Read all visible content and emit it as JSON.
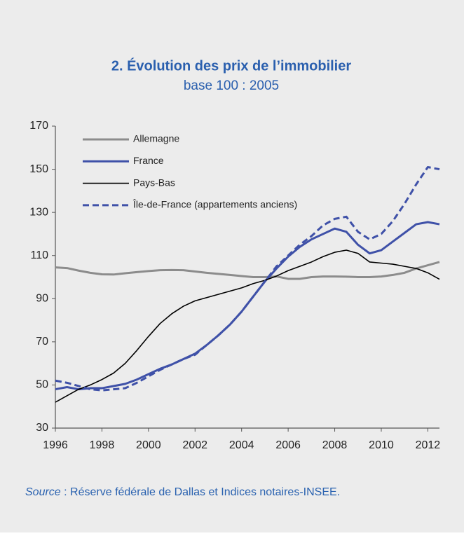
{
  "chart_data": {
    "type": "line",
    "title": "2. Évolution des prix de l’immobilier",
    "subtitle": "base 100 : 2005",
    "source_label": "Source",
    "source_text": " : Réserve fédérale de Dallas et Indices notaires-INSEE.",
    "x": [
      1996,
      1996.5,
      1997,
      1997.5,
      1998,
      1998.5,
      1999,
      1999.5,
      2000,
      2000.5,
      2001,
      2001.5,
      2002,
      2002.5,
      2003,
      2003.5,
      2004,
      2004.5,
      2005,
      2005.5,
      2006,
      2006.5,
      2007,
      2007.5,
      2008,
      2008.5,
      2009,
      2009.5,
      2010,
      2010.5,
      2011,
      2011.5,
      2012,
      2012.5
    ],
    "xlim": [
      1996,
      2012.5
    ],
    "xticks": [
      1996,
      1998,
      2000,
      2002,
      2004,
      2006,
      2008,
      2010,
      2012
    ],
    "ylim": [
      30,
      170
    ],
    "yticks": [
      30,
      50,
      70,
      90,
      110,
      130,
      150,
      170
    ],
    "series": [
      {
        "name": "Allemagne",
        "color": "#8c8c8c",
        "style": "solid",
        "values": [
          104.5,
          104.2,
          103,
          102,
          101.3,
          101.2,
          101.8,
          102.3,
          102.8,
          103.2,
          103.3,
          103.2,
          102.6,
          102,
          101.5,
          101,
          100.5,
          100,
          100,
          100.3,
          99.2,
          99.2,
          100,
          100.3,
          100.3,
          100.2,
          100,
          100,
          100.3,
          101,
          102,
          104,
          105.5,
          107
        ]
      },
      {
        "name": "France",
        "color": "#3f51a8",
        "style": "solid",
        "values": [
          48,
          49,
          48,
          48.5,
          48.5,
          49.5,
          50.5,
          52.5,
          55,
          57.5,
          59.5,
          62,
          64.5,
          68.5,
          73,
          78,
          84,
          91,
          98,
          104,
          109.5,
          114,
          117.5,
          120,
          122.5,
          121,
          115,
          111,
          112.5,
          116.5,
          120.5,
          124.5,
          125.5,
          124.5
        ]
      },
      {
        "name": "Pays-Bas",
        "color": "#000000",
        "style": "solid",
        "values": [
          42,
          45,
          48,
          50,
          52.5,
          55.5,
          60,
          66,
          72.5,
          78.5,
          83,
          86.5,
          89,
          90.5,
          92,
          93.5,
          95,
          97,
          98.5,
          100.5,
          103,
          105,
          107,
          109.5,
          111.5,
          112.5,
          111,
          107,
          106.5,
          106,
          105,
          104,
          102,
          99
        ]
      },
      {
        "name": "Île-de-France (appartements anciens)",
        "color": "#3f51a8",
        "style": "dashed",
        "values": [
          52,
          51,
          49.5,
          48,
          47.5,
          48,
          48.5,
          51,
          54,
          57,
          59.5,
          62,
          64,
          68.5,
          73,
          78,
          84,
          91,
          98,
          105,
          110,
          115,
          119,
          124,
          127,
          128,
          121,
          117.5,
          120,
          126,
          134,
          143,
          151,
          150
        ]
      }
    ]
  }
}
